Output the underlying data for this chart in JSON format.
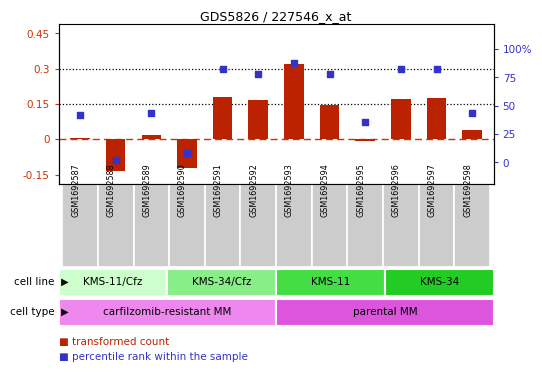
{
  "title": "GDS5826 / 227546_x_at",
  "samples": [
    "GSM1692587",
    "GSM1692588",
    "GSM1692589",
    "GSM1692590",
    "GSM1692591",
    "GSM1692592",
    "GSM1692593",
    "GSM1692594",
    "GSM1692595",
    "GSM1692596",
    "GSM1692597",
    "GSM1692598"
  ],
  "transformed_count": [
    0.005,
    -0.135,
    0.018,
    -0.12,
    0.18,
    0.165,
    0.32,
    0.145,
    -0.008,
    0.17,
    0.175,
    0.038
  ],
  "percentile_rank": [
    42,
    2,
    44,
    8,
    82,
    78,
    88,
    78,
    36,
    82,
    82,
    44
  ],
  "ylim_left": [
    -0.19,
    0.49
  ],
  "ylim_right": [
    -19,
    122
  ],
  "yticks_left": [
    -0.15,
    0.0,
    0.15,
    0.3,
    0.45
  ],
  "yticks_left_labels": [
    "-0.15",
    "0",
    "0.15",
    "0.3",
    "0.45"
  ],
  "yticks_right_vals": [
    0,
    25,
    50,
    75,
    100
  ],
  "yticks_right_labels": [
    "0",
    "25",
    "50",
    "75",
    "100%"
  ],
  "bar_color": "#bb2200",
  "dot_color": "#3333cc",
  "zero_line_color": "#cc3300",
  "cell_line_groups": [
    {
      "label": "KMS-11/Cfz",
      "start": 0,
      "end": 3,
      "color": "#ccffcc"
    },
    {
      "label": "KMS-34/Cfz",
      "start": 3,
      "end": 6,
      "color": "#88ee88"
    },
    {
      "label": "KMS-11",
      "start": 6,
      "end": 9,
      "color": "#44dd44"
    },
    {
      "label": "KMS-34",
      "start": 9,
      "end": 12,
      "color": "#22cc22"
    }
  ],
  "cell_type_groups": [
    {
      "label": "carfilzomib-resistant MM",
      "start": 0,
      "end": 6,
      "color": "#ee88ee"
    },
    {
      "label": "parental MM",
      "start": 6,
      "end": 12,
      "color": "#dd55dd"
    }
  ],
  "cell_line_label": "cell line",
  "cell_type_label": "cell type",
  "legend_tc_color": "#bb2200",
  "legend_pr_color": "#3333cc",
  "legend_tc_label": "transformed count",
  "legend_pr_label": "percentile rank within the sample",
  "sample_box_color": "#cccccc",
  "left_axis_color": "#cc3300",
  "right_axis_color": "#3333cc"
}
